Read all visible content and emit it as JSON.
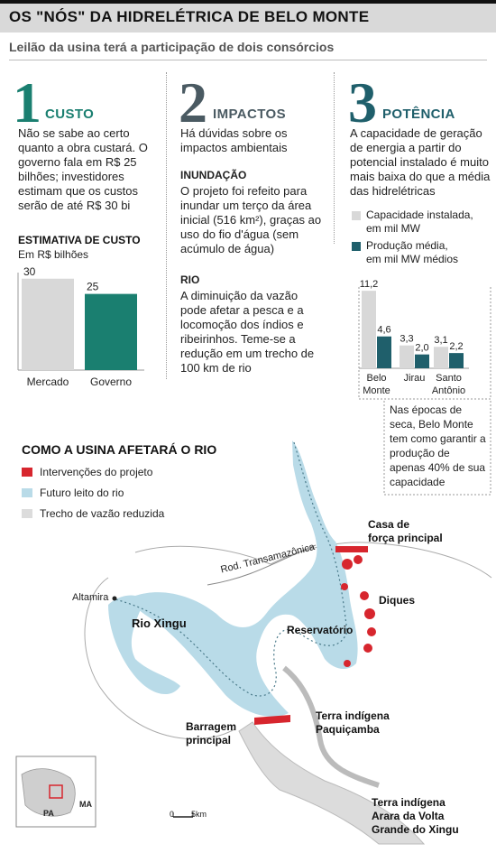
{
  "header": {
    "title": "OS \"NÓS\" DA HIDRELÉTRICA DE BELO MONTE",
    "subtitle": "Leilão da usina terá a participação de dois consórcios"
  },
  "sections": [
    {
      "number": "1",
      "heading": "CUSTO",
      "text": "Não se sabe ao certo quanto a obra custará. O governo fala em R$ 25 bilhões; investidores estimam que os custos serão de até R$ 30 bi"
    },
    {
      "number": "2",
      "heading": "IMPACTOS",
      "text": "Há dúvidas sobre os impactos ambientais",
      "sub": [
        {
          "heading": "INUNDAÇÃO",
          "text": "O projeto foi refeito para inundar um terço da área inicial (516 km²), graças ao uso do fio d'água (sem acúmulo de água)"
        },
        {
          "heading": "RIO",
          "text": "A diminuição da vazão pode afetar a pesca e a locomoção dos índios e ribeirinhos. Teme-se a redução em um trecho de 100 km de rio"
        }
      ]
    },
    {
      "number": "3",
      "heading": "POTÊNCIA",
      "text": "A capacidade de geração de energia a partir do potencial instalado é muito mais baixa do que a média das hidrelétricas"
    }
  ],
  "colors": {
    "teal": "#1a7f70",
    "slate": "#4a5a62",
    "gray_bar": "#d8d8d8",
    "dark_teal": "#1f5f6b",
    "river": "#b9dbe8",
    "red": "#d7262e"
  },
  "chart_data": [
    {
      "type": "bar",
      "title": "ESTIMATIVA DE CUSTO",
      "subtitle": "Em R$ bilhões",
      "categories": [
        "Mercado",
        "Governo"
      ],
      "values": [
        30,
        25
      ],
      "colors": [
        "#d8d8d8",
        "#1a7f70"
      ],
      "ylim": [
        0,
        32
      ]
    },
    {
      "type": "bar",
      "categories": [
        "Belo Monte",
        "Jirau",
        "Santo Antônio"
      ],
      "category_lines": [
        [
          "Belo",
          "Monte"
        ],
        [
          "Jirau"
        ],
        [
          "Santo",
          "Antônio"
        ]
      ],
      "series": [
        {
          "name": "Capacidade instalada, em mil MW",
          "name_lines": [
            "Capacidade instalada,",
            "em mil MW"
          ],
          "values": [
            11.2,
            3.3,
            3.1
          ],
          "labels": [
            "11,2",
            "3,3",
            "3,1"
          ],
          "color": "#d8d8d8"
        },
        {
          "name": "Produção média, em mil MW médios",
          "name_lines": [
            "Produção média,",
            "em mil MW médios"
          ],
          "values": [
            4.6,
            2.0,
            2.2
          ],
          "labels": [
            "4,6",
            "2,0",
            "2,2"
          ],
          "color": "#1f5f6b"
        }
      ],
      "ylim": [
        0,
        12
      ],
      "annotation": "Nas épocas de seca, Belo Monte tem como garantir a produção de apenas 40% de sua capacidade"
    }
  ],
  "map": {
    "title": "COMO A USINA AFETARÁ O RIO",
    "legend": [
      {
        "label": "Intervenções do projeto",
        "color": "#d7262e"
      },
      {
        "label": "Futuro leito do rio",
        "color": "#b9dbe8"
      },
      {
        "label": "Trecho de vazão reduzida",
        "color": "#dcdcdc"
      }
    ],
    "labels": {
      "casa": [
        "Casa de",
        "força principal"
      ],
      "diques": "Diques",
      "rodovia": "Rod. Transamazônica",
      "altamira": "Altamira",
      "rio_xingu": "Rio Xingu",
      "reservatorio": "Reservatório",
      "barragem": [
        "Barragem",
        "principal"
      ],
      "paquicamba": [
        "Terra indígena",
        "Paquiçamba"
      ],
      "arara": [
        "Terra indígena",
        "Arara da Volta",
        "Grande do Xingu"
      ],
      "scale_zero": "0",
      "scale_km": "5km",
      "inset_pa": "PA",
      "inset_ma": "MA"
    }
  }
}
